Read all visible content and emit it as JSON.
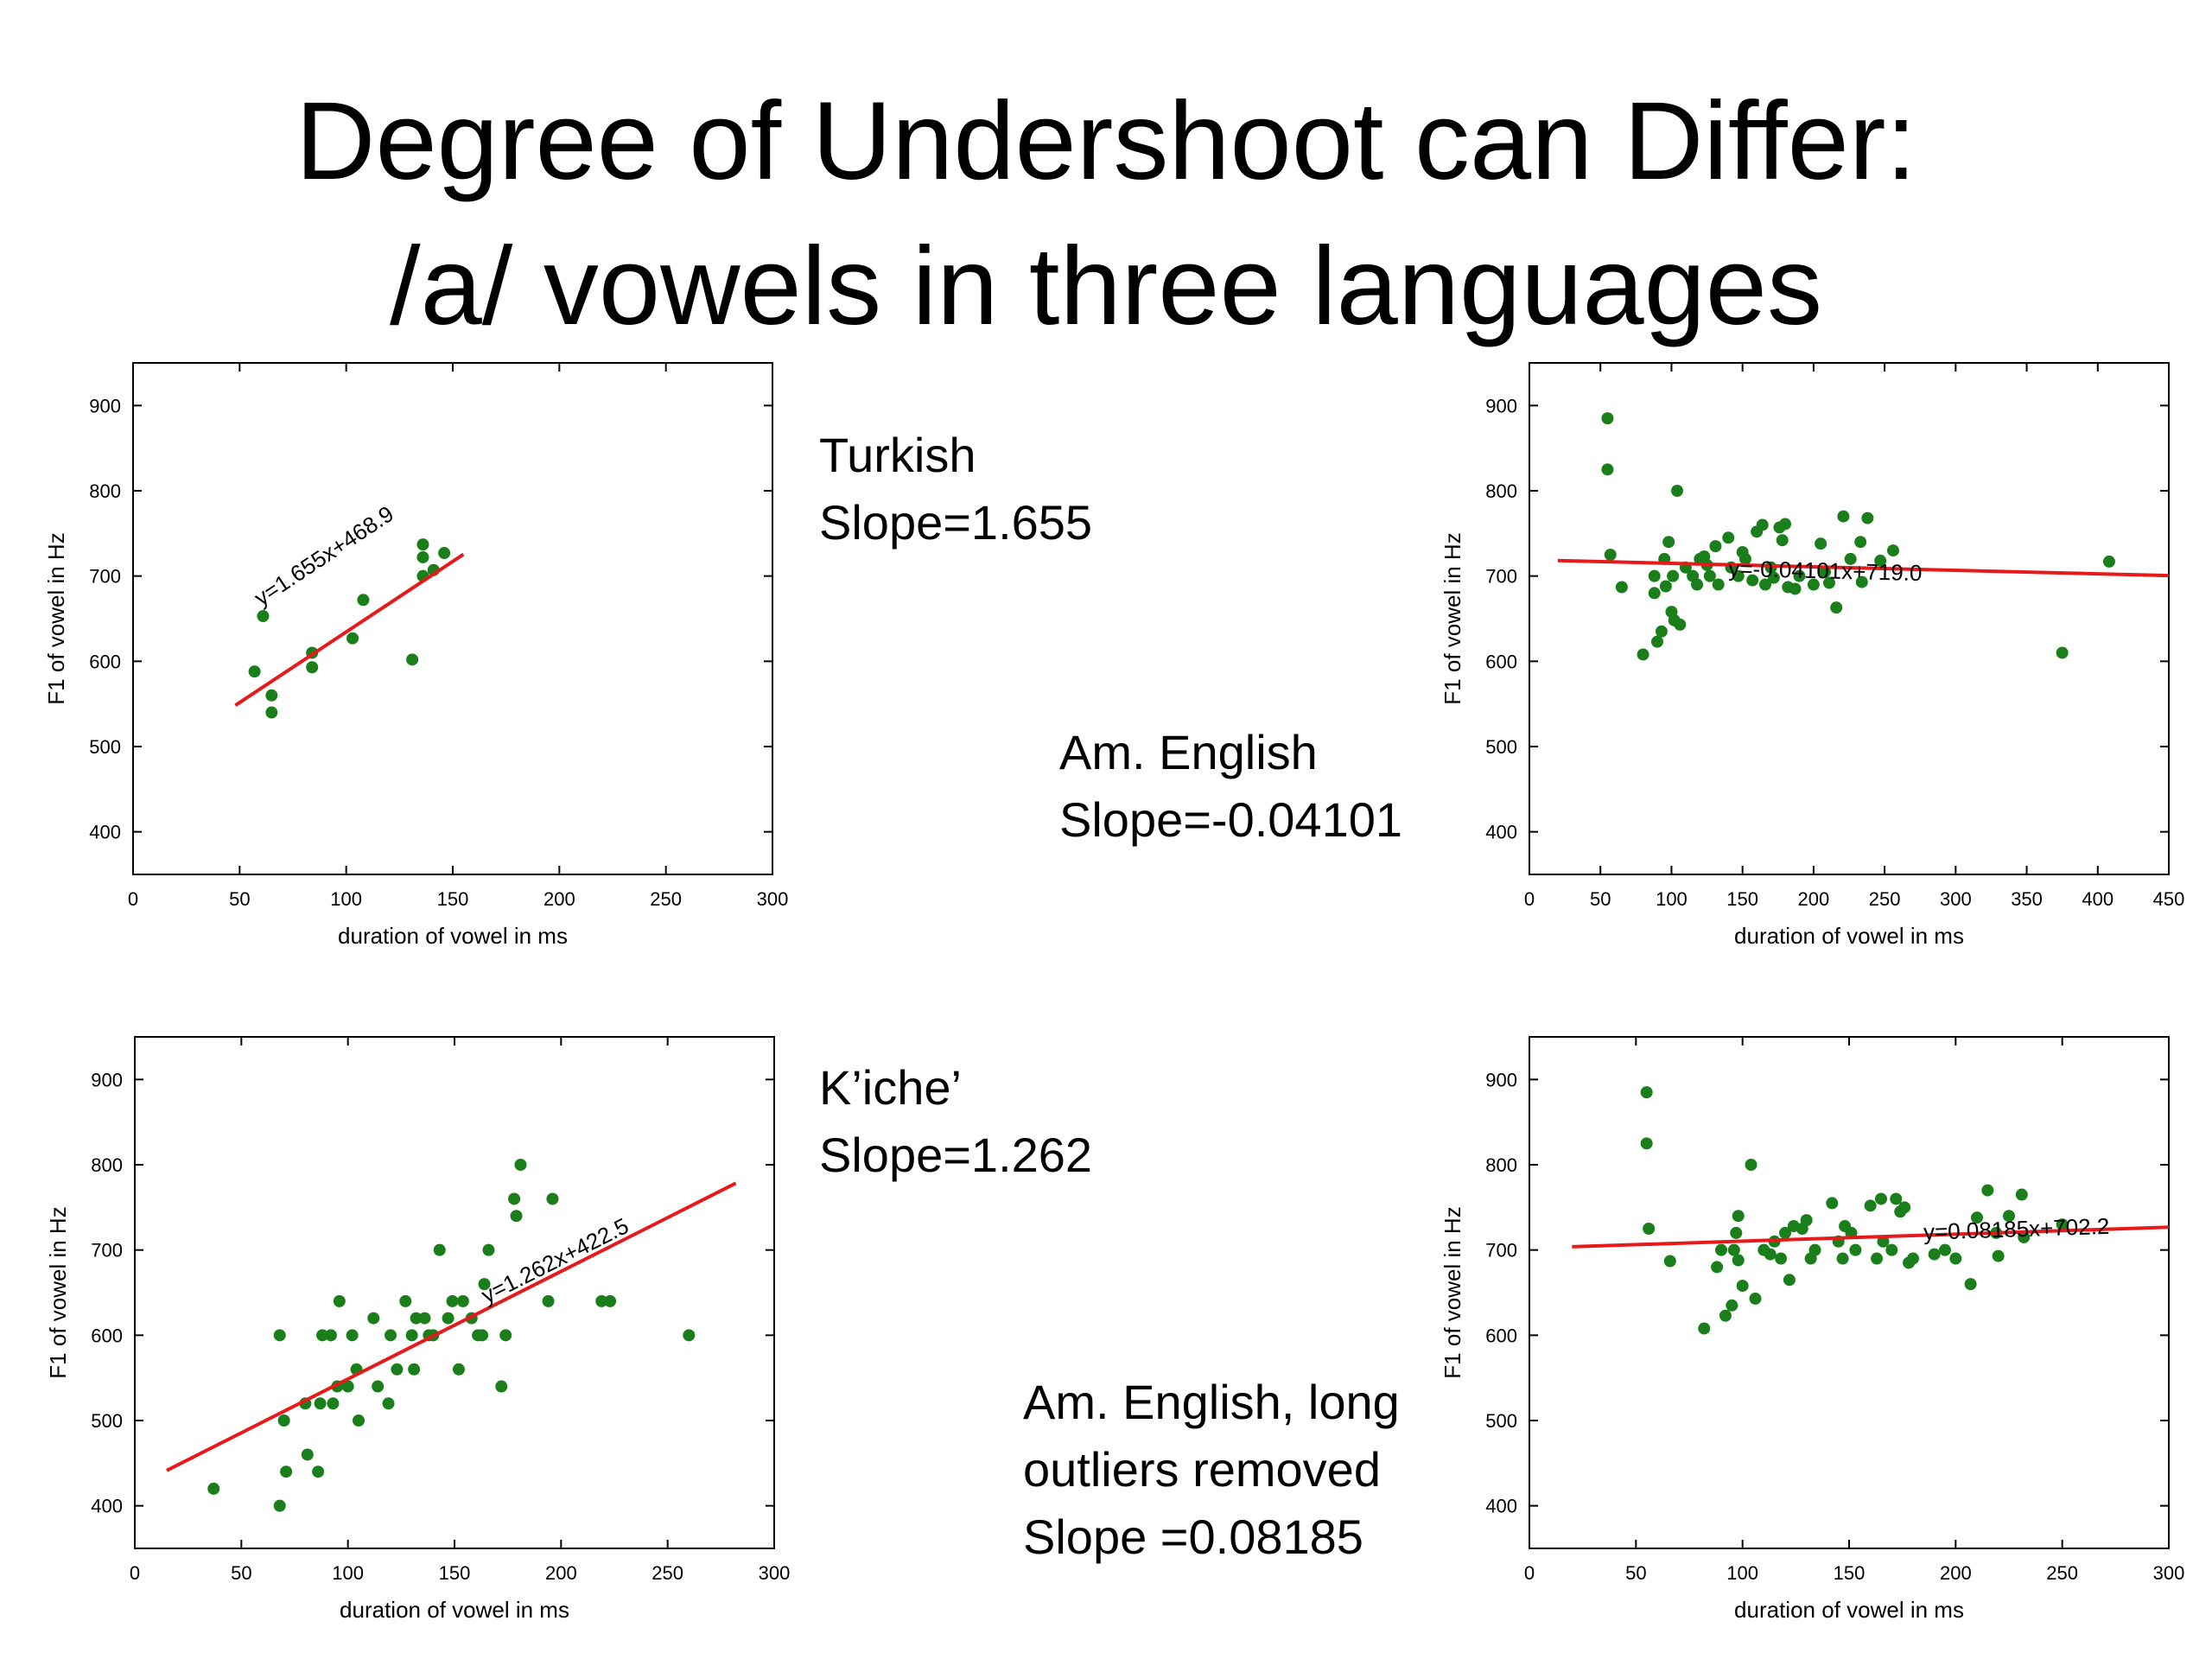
{
  "title": {
    "line1": "Degree of Undershoot can Differ:",
    "line2": "/a/ vowels in three languages"
  },
  "captions": {
    "turkish": {
      "name": "Turkish",
      "slope": "Slope=1.655"
    },
    "english": {
      "name": "Am. English",
      "slope": "Slope=-0.04101"
    },
    "kiche": {
      "name": "K’iche’",
      "slope": "Slope=1.262"
    },
    "english_trimmed": {
      "line1": "Am. English, long",
      "line2": "outliers removed",
      "line3": "Slope =0.08185"
    }
  },
  "chart_data": [
    {
      "type": "scatter",
      "language": "Turkish",
      "xlabel": "duration of vowel in ms",
      "ylabel": "F1 of vowel in Hz",
      "xlim": [
        0,
        300
      ],
      "ylim": [
        350,
        950
      ],
      "xticks": [
        0,
        50,
        100,
        150,
        200,
        250,
        300
      ],
      "yticks": [
        400,
        500,
        600,
        700,
        800,
        900
      ],
      "points": [
        [
          57,
          588
        ],
        [
          61,
          653
        ],
        [
          65,
          560
        ],
        [
          65,
          540
        ],
        [
          84,
          610
        ],
        [
          84,
          593
        ],
        [
          103,
          627
        ],
        [
          108,
          672
        ],
        [
          131,
          602
        ],
        [
          136,
          737
        ],
        [
          136,
          722
        ],
        [
          136,
          700
        ],
        [
          141,
          707
        ],
        [
          146,
          727
        ]
      ],
      "fit": {
        "slope": 1.655,
        "intercept": 468.9,
        "x_range": [
          48,
          155
        ],
        "equation": "y=1.655x+468.9"
      },
      "point_color": "#1a7f1a",
      "fit_color": "#e61a1a"
    },
    {
      "type": "scatter",
      "language": "Am. English",
      "xlabel": "duration of vowel in ms",
      "ylabel": "F1 of vowel in Hz",
      "xlim": [
        0,
        450
      ],
      "ylim": [
        350,
        950
      ],
      "xticks": [
        0,
        50,
        100,
        150,
        200,
        250,
        300,
        350,
        400,
        450
      ],
      "yticks": [
        400,
        500,
        600,
        700,
        800,
        900
      ],
      "points": [
        [
          55,
          885
        ],
        [
          55,
          825
        ],
        [
          57,
          725
        ],
        [
          65,
          687
        ],
        [
          80,
          608
        ],
        [
          88,
          680
        ],
        [
          88,
          700
        ],
        [
          90,
          623
        ],
        [
          93,
          635
        ],
        [
          95,
          720
        ],
        [
          96,
          688
        ],
        [
          98,
          740
        ],
        [
          100,
          658
        ],
        [
          101,
          700
        ],
        [
          102,
          648
        ],
        [
          104,
          800
        ],
        [
          106,
          643
        ],
        [
          110,
          710
        ],
        [
          115,
          700
        ],
        [
          118,
          690
        ],
        [
          120,
          720
        ],
        [
          123,
          723
        ],
        [
          125,
          713
        ],
        [
          127,
          700
        ],
        [
          131,
          735
        ],
        [
          133,
          690
        ],
        [
          140,
          745
        ],
        [
          142,
          710
        ],
        [
          147,
          700
        ],
        [
          150,
          728
        ],
        [
          152,
          720
        ],
        [
          157,
          695
        ],
        [
          160,
          752
        ],
        [
          164,
          760
        ],
        [
          166,
          690
        ],
        [
          170,
          710
        ],
        [
          172,
          698
        ],
        [
          176,
          757
        ],
        [
          178,
          742
        ],
        [
          180,
          761
        ],
        [
          182,
          687
        ],
        [
          187,
          685
        ],
        [
          190,
          700
        ],
        [
          200,
          690
        ],
        [
          205,
          738
        ],
        [
          208,
          705
        ],
        [
          211,
          692
        ],
        [
          216,
          663
        ],
        [
          221,
          770
        ],
        [
          226,
          720
        ],
        [
          233,
          740
        ],
        [
          234,
          693
        ],
        [
          238,
          768
        ],
        [
          247,
          718
        ],
        [
          256,
          730
        ],
        [
          375,
          610
        ],
        [
          408,
          717
        ]
      ],
      "fit": {
        "slope": -0.04101,
        "intercept": 719.0,
        "x_range": [
          20,
          450
        ],
        "equation": "y=-0.04101x+719.0"
      },
      "point_color": "#1a7f1a",
      "fit_color": "#e61a1a"
    },
    {
      "type": "scatter",
      "language": "K’iche’",
      "xlabel": "duration of vowel in ms",
      "ylabel": "F1 of vowel in Hz",
      "xlim": [
        0,
        300
      ],
      "ylim": [
        350,
        950
      ],
      "xticks": [
        0,
        50,
        100,
        150,
        200,
        250,
        300
      ],
      "yticks": [
        400,
        500,
        600,
        700,
        800,
        900
      ],
      "points": [
        [
          37,
          420
        ],
        [
          68,
          400
        ],
        [
          68,
          600
        ],
        [
          70,
          500
        ],
        [
          71,
          440
        ],
        [
          80,
          520
        ],
        [
          81,
          460
        ],
        [
          86,
          440
        ],
        [
          87,
          520
        ],
        [
          88,
          600
        ],
        [
          92,
          600
        ],
        [
          93,
          520
        ],
        [
          95,
          540
        ],
        [
          96,
          640
        ],
        [
          100,
          540
        ],
        [
          102,
          600
        ],
        [
          104,
          560
        ],
        [
          105,
          500
        ],
        [
          112,
          620
        ],
        [
          114,
          540
        ],
        [
          119,
          520
        ],
        [
          120,
          600
        ],
        [
          123,
          560
        ],
        [
          127,
          640
        ],
        [
          130,
          600
        ],
        [
          131,
          560
        ],
        [
          132,
          620
        ],
        [
          136,
          620
        ],
        [
          138,
          600
        ],
        [
          140,
          600
        ],
        [
          143,
          700
        ],
        [
          147,
          620
        ],
        [
          149,
          640
        ],
        [
          152,
          560
        ],
        [
          154,
          640
        ],
        [
          158,
          620
        ],
        [
          161,
          600
        ],
        [
          163,
          600
        ],
        [
          164,
          660
        ],
        [
          166,
          700
        ],
        [
          172,
          540
        ],
        [
          174,
          600
        ],
        [
          178,
          760
        ],
        [
          179,
          740
        ],
        [
          181,
          800
        ],
        [
          194,
          640
        ],
        [
          196,
          760
        ],
        [
          219,
          640
        ],
        [
          223,
          640
        ],
        [
          260,
          600
        ]
      ],
      "fit": {
        "slope": 1.262,
        "intercept": 422.5,
        "x_range": [
          15,
          282
        ],
        "equation": "y=1.262x+422.5"
      },
      "point_color": "#1a7f1a",
      "fit_color": "#e61a1a"
    },
    {
      "type": "scatter",
      "language": "Am. English, long outliers removed",
      "xlabel": "duration of vowel in ms",
      "ylabel": "F1 of vowel in Hz",
      "xlim": [
        0,
        300
      ],
      "ylim": [
        350,
        950
      ],
      "xticks": [
        0,
        50,
        100,
        150,
        200,
        250,
        300
      ],
      "yticks": [
        400,
        500,
        600,
        700,
        800,
        900
      ],
      "points": [
        [
          55,
          885
        ],
        [
          55,
          825
        ],
        [
          56,
          725
        ],
        [
          66,
          687
        ],
        [
          82,
          608
        ],
        [
          88,
          680
        ],
        [
          90,
          700
        ],
        [
          92,
          623
        ],
        [
          95,
          635
        ],
        [
          96,
          700
        ],
        [
          97,
          720
        ],
        [
          98,
          688
        ],
        [
          98,
          740
        ],
        [
          100,
          658
        ],
        [
          104,
          800
        ],
        [
          106,
          643
        ],
        [
          110,
          700
        ],
        [
          113,
          695
        ],
        [
          115,
          710
        ],
        [
          118,
          690
        ],
        [
          120,
          720
        ],
        [
          122,
          665
        ],
        [
          124,
          728
        ],
        [
          128,
          725
        ],
        [
          130,
          735
        ],
        [
          132,
          690
        ],
        [
          134,
          700
        ],
        [
          142,
          755
        ],
        [
          145,
          710
        ],
        [
          147,
          690
        ],
        [
          148,
          728
        ],
        [
          151,
          720
        ],
        [
          153,
          700
        ],
        [
          160,
          752
        ],
        [
          163,
          690
        ],
        [
          165,
          760
        ],
        [
          166,
          710
        ],
        [
          170,
          700
        ],
        [
          172,
          760
        ],
        [
          174,
          745
        ],
        [
          176,
          750
        ],
        [
          178,
          685
        ],
        [
          180,
          690
        ],
        [
          190,
          695
        ],
        [
          195,
          700
        ],
        [
          200,
          690
        ],
        [
          207,
          660
        ],
        [
          210,
          738
        ],
        [
          215,
          770
        ],
        [
          219,
          720
        ],
        [
          220,
          693
        ],
        [
          225,
          740
        ],
        [
          231,
          765
        ],
        [
          232,
          715
        ],
        [
          250,
          730
        ]
      ],
      "fit": {
        "slope": 0.08185,
        "intercept": 702.2,
        "x_range": [
          20,
          300
        ],
        "equation": "y=0.08185x+702.2"
      },
      "point_color": "#1a7f1a",
      "fit_color": "#e61a1a"
    }
  ]
}
